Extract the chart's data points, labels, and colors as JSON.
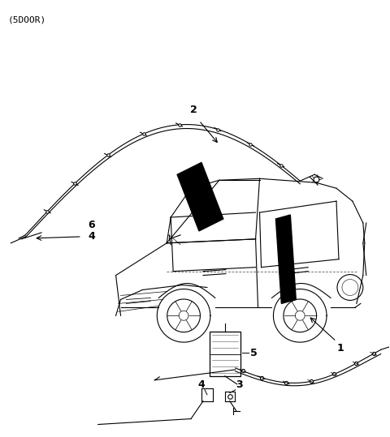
{
  "title": "(5DOOR)",
  "bg_color": "#ffffff",
  "line_color": "#000000",
  "fig_width": 4.8,
  "fig_height": 5.39,
  "dpi": 100
}
